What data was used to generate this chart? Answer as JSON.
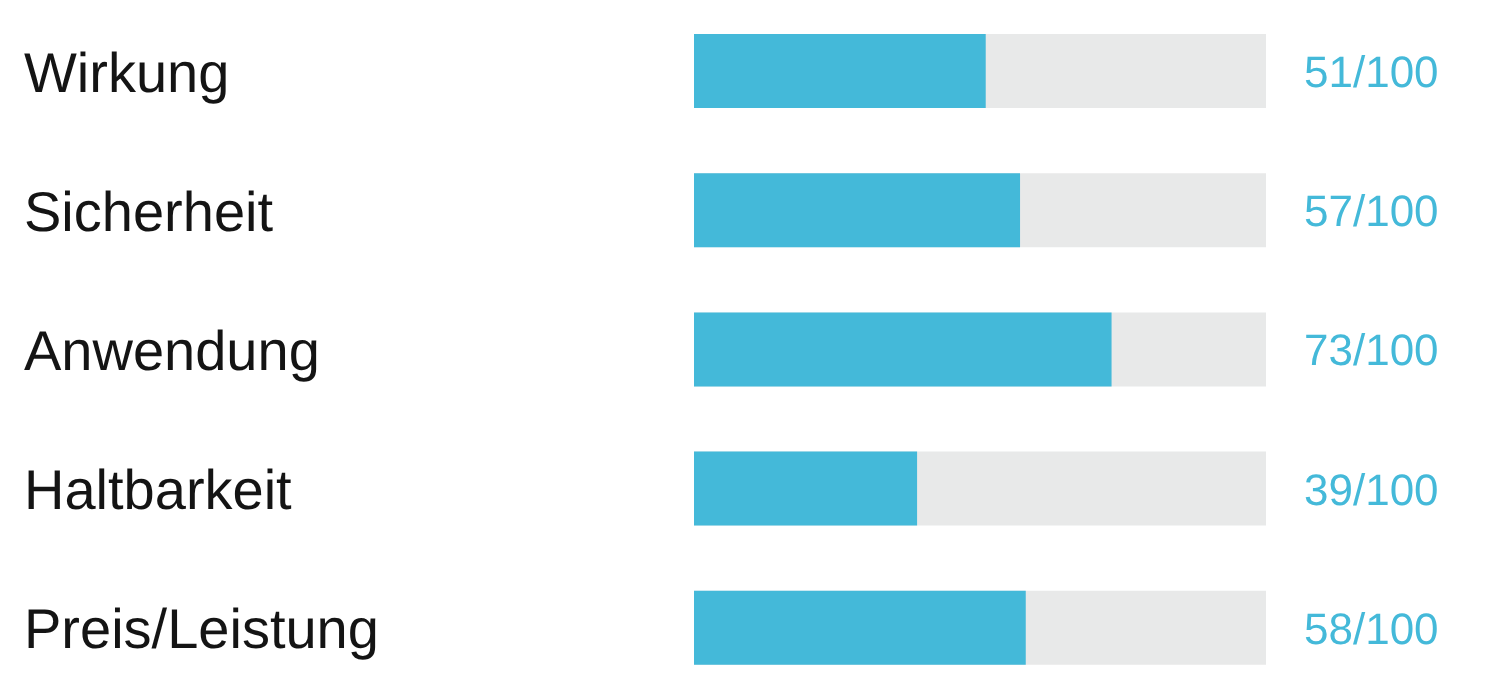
{
  "chart_data": {
    "type": "bar",
    "orientation": "horizontal",
    "categories": [
      "Wirkung",
      "Sicherheit",
      "Anwendung",
      "Haltbarkeit",
      "Preis/Leistung"
    ],
    "values": [
      51,
      57,
      73,
      39,
      58
    ],
    "color": "#44b9d9",
    "value_labels": [
      "51/100",
      "57/100",
      "73/100",
      "39/100",
      "58/100"
    ],
    "xlim": [
      0,
      100
    ],
    "tick_labels": "y"
  }
}
